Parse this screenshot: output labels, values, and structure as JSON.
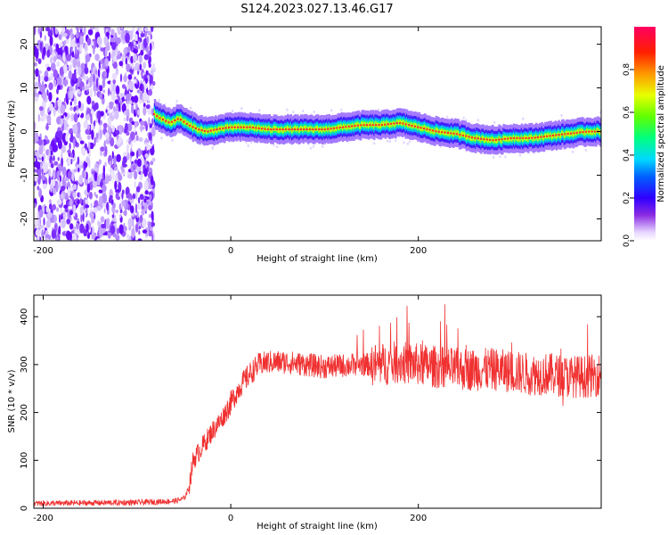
{
  "title": "S124.2023.027.13.46.G17",
  "chart_data": [
    {
      "type": "heatmap",
      "title": "S124.2023.027.13.46.G17",
      "xlabel": "Height of straight line (km)",
      "ylabel": "Frequency (Hz)",
      "xlim": [
        -210,
        395
      ],
      "ylim": [
        -25,
        24
      ],
      "xticks": [
        -200,
        0,
        200
      ],
      "yticks": [
        -20,
        -10,
        0,
        10,
        20
      ],
      "colorbar": {
        "label": "Normalized spectral amplitude",
        "range": [
          0,
          1
        ],
        "ticks": [
          "0.0",
          "0.2",
          "0.4",
          "0.6",
          "0.8"
        ]
      },
      "noise_region_x": [
        -210,
        -82
      ],
      "ridge": {
        "x": [
          -82,
          -75,
          -65,
          -55,
          -45,
          -35,
          -25,
          -15,
          0,
          20,
          40,
          60,
          80,
          100,
          120,
          140,
          160,
          180,
          200,
          220,
          240,
          260,
          280,
          300,
          320,
          340,
          360,
          380,
          395
        ],
        "freq": [
          4,
          3,
          2,
          3,
          1.5,
          0.5,
          0,
          0.5,
          1,
          1,
          0.5,
          0.5,
          0.5,
          0.5,
          1,
          1.5,
          1.5,
          2,
          1,
          0,
          -0.5,
          -1.5,
          -2,
          -1.5,
          -1.5,
          -1,
          -0.5,
          0,
          0
        ]
      }
    },
    {
      "type": "line",
      "xlabel": "Height of straight line (km)",
      "ylabel": "SNR (10 * v/v)",
      "xlim": [
        -210,
        395
      ],
      "ylim": [
        0,
        445
      ],
      "xticks": [
        -200,
        0,
        200
      ],
      "yticks": [
        0,
        100,
        200,
        300,
        400
      ],
      "color": "#f03030",
      "series": [
        {
          "x": [
            -210,
            -100,
            -60,
            -50,
            -45,
            -40,
            -30,
            -20,
            -10,
            0,
            10,
            20,
            30,
            40,
            60,
            80,
            100,
            120,
            140,
            160,
            180,
            200,
            220,
            240,
            260,
            280,
            300,
            320,
            340,
            360,
            380,
            395
          ],
          "values": [
            10,
            12,
            15,
            20,
            40,
            100,
            130,
            160,
            185,
            220,
            255,
            280,
            300,
            305,
            305,
            300,
            295,
            298,
            300,
            300,
            305,
            300,
            295,
            290,
            290,
            290,
            285,
            280,
            280,
            275,
            275,
            280
          ]
        }
      ]
    }
  ]
}
